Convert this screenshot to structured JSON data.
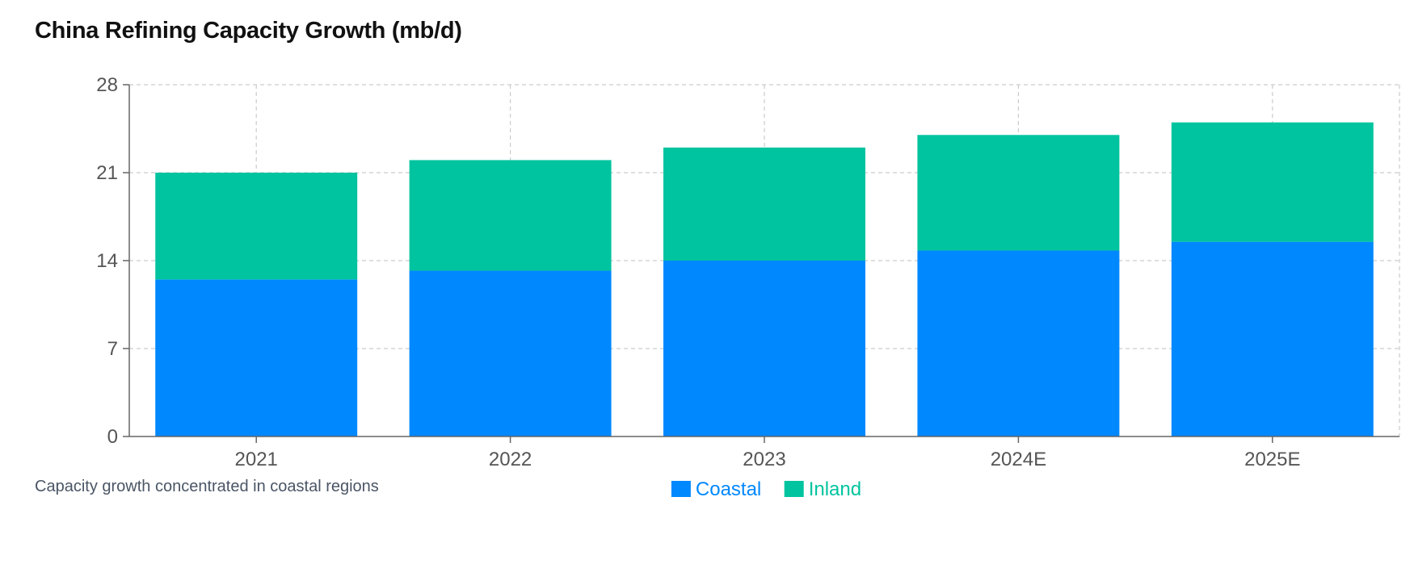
{
  "title": "China Refining Capacity Growth (mb/d)",
  "caption": "Capacity growth concentrated in coastal regions",
  "chart_data": {
    "type": "bar",
    "stacked": true,
    "title": "China Refining Capacity Growth (mb/d)",
    "xlabel": "",
    "ylabel": "",
    "categories": [
      "2021",
      "2022",
      "2023",
      "2024E",
      "2025E"
    ],
    "series": [
      {
        "name": "Coastal",
        "color": "#0088fe",
        "values": [
          12.5,
          13.2,
          14.0,
          14.8,
          15.5
        ]
      },
      {
        "name": "Inland",
        "color": "#00c49f",
        "values": [
          8.5,
          8.8,
          9.0,
          9.2,
          9.5
        ]
      }
    ],
    "ylim": [
      0,
      28
    ],
    "yticks": [
      0,
      7,
      14,
      21,
      28
    ],
    "grid": true,
    "legend_position": "bottom-center"
  }
}
